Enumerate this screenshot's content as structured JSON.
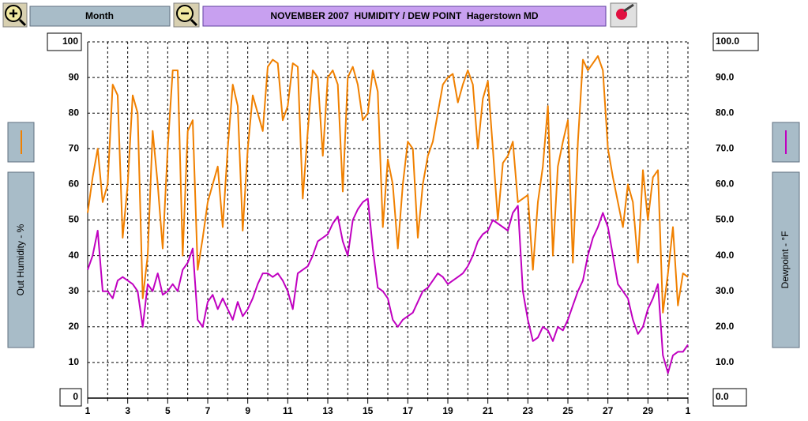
{
  "toolbar": {
    "period": "Month"
  },
  "chart_data": {
    "type": "line",
    "title": "NOVEMBER 2007  HUMIDITY / DEW POINT  Hagerstown MD",
    "ylabel": "Out Humidity - %",
    "y2label": "Dewpoint - °F",
    "xlim": [
      1,
      31
    ],
    "xticks": [
      1,
      3,
      5,
      7,
      9,
      11,
      13,
      15,
      17,
      19,
      21,
      23,
      25,
      27,
      29,
      {
        "value": 31,
        "label": "1"
      }
    ],
    "xminorticks": [
      2,
      4,
      6,
      8,
      10,
      12,
      14,
      16,
      18,
      20,
      22,
      24,
      26,
      28,
      30
    ],
    "ylim": [
      0,
      100
    ],
    "yticks": [
      0,
      10,
      20,
      30,
      40,
      50,
      60,
      70,
      80,
      90,
      100
    ],
    "y2lim": [
      0,
      100
    ],
    "y2ticks": [
      {
        "value": 0,
        "label": "0.0"
      },
      {
        "value": 10,
        "label": "10.0"
      },
      {
        "value": 20,
        "label": "20.0"
      },
      {
        "value": 30,
        "label": "30.0"
      },
      {
        "value": 40,
        "label": "40.0"
      },
      {
        "value": 50,
        "label": "50.0"
      },
      {
        "value": 60,
        "label": "60.0"
      },
      {
        "value": 70,
        "label": "70.0"
      },
      {
        "value": 80,
        "label": "80.0"
      },
      {
        "value": 90,
        "label": "90.0"
      },
      {
        "value": 100,
        "label": "100.0"
      }
    ],
    "grid": true,
    "x": [
      1,
      1.25,
      1.5,
      1.75,
      2,
      2.25,
      2.5,
      2.75,
      3,
      3.25,
      3.5,
      3.75,
      4,
      4.25,
      4.5,
      4.75,
      5,
      5.25,
      5.5,
      5.75,
      6,
      6.25,
      6.5,
      6.75,
      7,
      7.25,
      7.5,
      7.75,
      8,
      8.25,
      8.5,
      8.75,
      9,
      9.25,
      9.5,
      9.75,
      10,
      10.25,
      10.5,
      10.75,
      11,
      11.25,
      11.5,
      11.75,
      12,
      12.25,
      12.5,
      12.75,
      13,
      13.25,
      13.5,
      13.75,
      14,
      14.25,
      14.5,
      14.75,
      15,
      15.25,
      15.5,
      15.75,
      16,
      16.25,
      16.5,
      16.75,
      17,
      17.25,
      17.5,
      17.75,
      18,
      18.25,
      18.5,
      18.75,
      19,
      19.25,
      19.5,
      19.75,
      20,
      20.25,
      20.5,
      20.75,
      21,
      21.25,
      21.5,
      21.75,
      22,
      22.25,
      22.5,
      22.75,
      23,
      23.25,
      23.5,
      23.75,
      24,
      24.25,
      24.5,
      24.75,
      25,
      25.25,
      25.5,
      25.75,
      26,
      26.25,
      26.5,
      26.75,
      27,
      27.25,
      27.5,
      27.75,
      28,
      28.25,
      28.5,
      28.75,
      29,
      29.25,
      29.5,
      29.75,
      30,
      30.25,
      30.5,
      30.75,
      31
    ],
    "series": [
      {
        "color": "#f08000",
        "values": [
          52,
          62,
          70,
          55,
          60,
          88,
          85,
          45,
          60,
          85,
          80,
          28,
          40,
          75,
          60,
          42,
          70,
          92,
          92,
          40,
          75,
          78,
          36,
          45,
          55,
          60,
          65,
          48,
          70,
          88,
          82,
          47,
          70,
          85,
          80,
          75,
          93,
          95,
          94,
          78,
          82,
          94,
          93,
          56,
          75,
          92,
          90,
          68,
          90,
          92,
          88,
          58,
          90,
          93,
          88,
          78,
          80,
          92,
          86,
          48,
          67,
          60,
          42,
          60,
          72,
          70,
          45,
          60,
          68,
          72,
          80,
          88,
          90,
          91,
          83,
          88,
          92,
          88,
          70,
          84,
          89,
          70,
          50,
          66,
          68,
          72,
          55,
          56,
          57,
          36,
          55,
          65,
          82,
          40,
          65,
          72,
          78,
          38,
          72,
          95,
          92,
          94,
          96,
          92,
          70,
          62,
          55,
          48,
          60,
          55,
          38,
          64,
          50,
          62,
          64,
          24,
          35,
          48,
          26,
          35,
          34
        ]
      },
      {
        "color": "#c000c0",
        "axis": "y2",
        "values": [
          36,
          40,
          47,
          30,
          30,
          28,
          33,
          34,
          33,
          32,
          30,
          20,
          32,
          30,
          35,
          29,
          30,
          32,
          30,
          36,
          38,
          42,
          22,
          20,
          27,
          29,
          25,
          28,
          25,
          22,
          27,
          23,
          25,
          28,
          32,
          35,
          35,
          34,
          35,
          33,
          30,
          25,
          35,
          36,
          37,
          40,
          44,
          45,
          46,
          49,
          51,
          44,
          40,
          50,
          53,
          55,
          56,
          42,
          31,
          30,
          28,
          22,
          20,
          22,
          23,
          24,
          27,
          30,
          31,
          33,
          35,
          34,
          32,
          33,
          34,
          35,
          37,
          40,
          44,
          46,
          47,
          50,
          49,
          48,
          47,
          52,
          54,
          30,
          22,
          16,
          17,
          20,
          19,
          16,
          20,
          19,
          22,
          26,
          30,
          33,
          40,
          45,
          48,
          52,
          48,
          40,
          32,
          30,
          28,
          22,
          18,
          20,
          25,
          28,
          32,
          12,
          7,
          12,
          13,
          13,
          15
        ]
      }
    ]
  }
}
